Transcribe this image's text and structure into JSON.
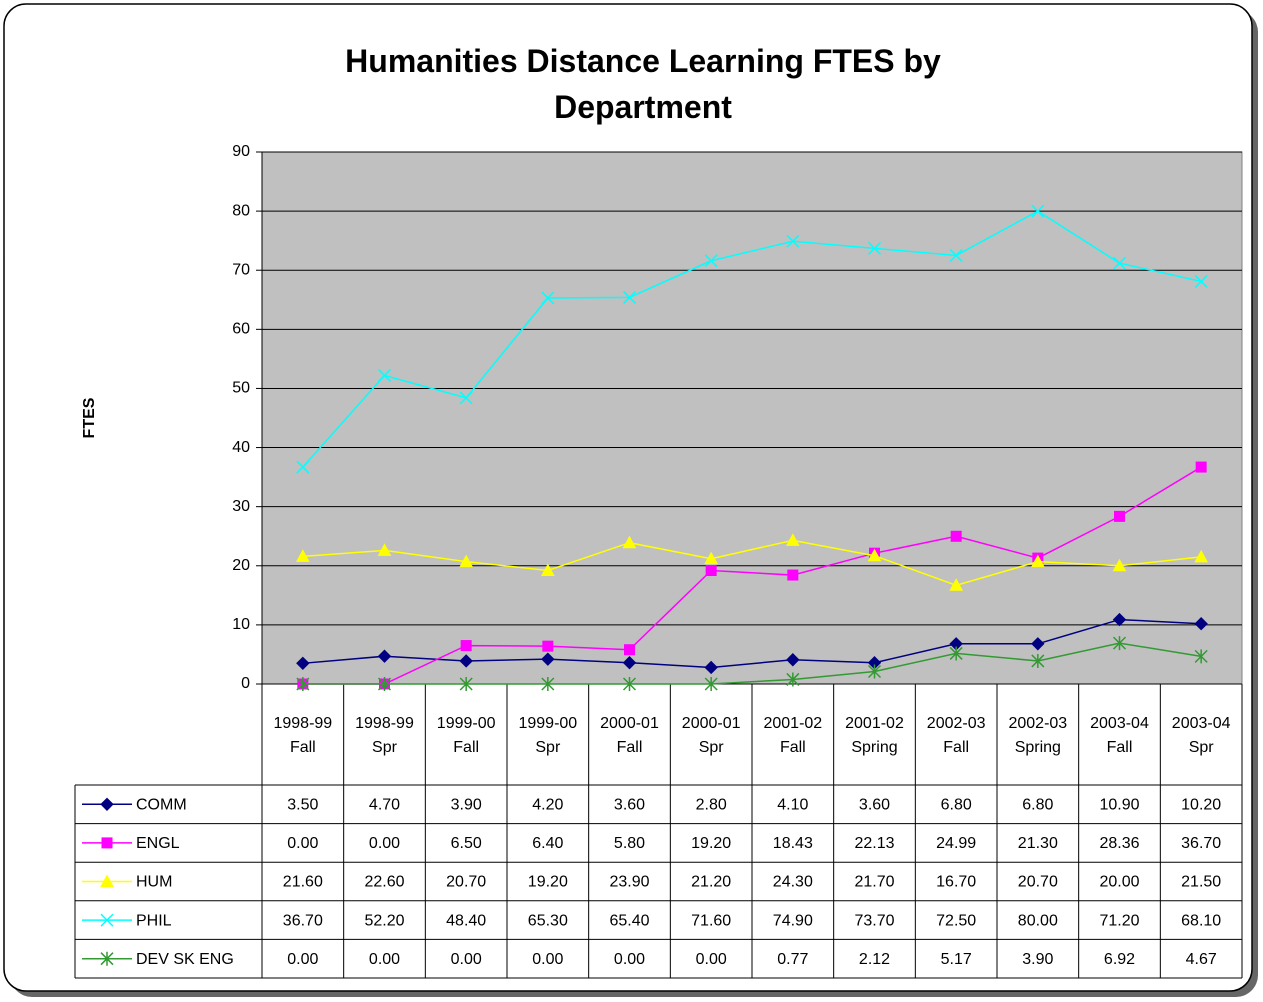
{
  "chart_data": {
    "type": "line",
    "title": "Humanities Distance Learning FTES by Department",
    "y_label": "FTES",
    "categories": [
      "1998-99 Fall",
      "1998-99 Spr",
      "1999-00 Fall",
      "1999-00 Spr",
      "2000-01 Fall",
      "2000-01 Spr",
      "2001-02 Fall",
      "2001-02 Spring",
      "2002-03 Fall",
      "2002-03 Spring",
      "2003-04 Fall",
      "2003-04 Spr"
    ],
    "ylim": [
      0,
      90
    ],
    "yticks": [
      0,
      10,
      20,
      30,
      40,
      50,
      60,
      70,
      80,
      90
    ],
    "grid": true,
    "plot_background": "#c0c0c0",
    "series": [
      {
        "name": "COMM",
        "color": "#000080",
        "marker": "diamond",
        "values": [
          3.5,
          4.7,
          3.9,
          4.2,
          3.6,
          2.8,
          4.1,
          3.6,
          6.8,
          6.8,
          10.9,
          10.2
        ],
        "value_labels": [
          "3.50",
          "4.70",
          "3.90",
          "4.20",
          "3.60",
          "2.80",
          "4.10",
          "3.60",
          "6.80",
          "6.80",
          "10.90",
          "10.20"
        ]
      },
      {
        "name": "ENGL",
        "color": "#ff00ff",
        "marker": "square",
        "values": [
          0,
          0,
          6.5,
          6.4,
          5.8,
          19.2,
          18.43,
          22.13,
          24.99,
          21.3,
          28.36,
          36.7
        ],
        "value_labels": [
          "0.00",
          "0.00",
          "6.50",
          "6.40",
          "5.80",
          "19.20",
          "18.43",
          "22.13",
          "24.99",
          "21.30",
          "28.36",
          "36.70"
        ]
      },
      {
        "name": "HUM",
        "color": "#ffff00",
        "marker": "triangle",
        "values": [
          21.6,
          22.6,
          20.7,
          19.2,
          23.9,
          21.2,
          24.3,
          21.7,
          16.7,
          20.7,
          20,
          21.5
        ],
        "value_labels": [
          "21.60",
          "22.60",
          "20.70",
          "19.20",
          "23.90",
          "21.20",
          "24.30",
          "21.70",
          "16.70",
          "20.70",
          "20.00",
          "21.50"
        ]
      },
      {
        "name": "PHIL",
        "color": "#00ffff",
        "marker": "x",
        "values": [
          36.7,
          52.2,
          48.4,
          65.3,
          65.4,
          71.6,
          74.9,
          73.7,
          72.5,
          80,
          71.2,
          68.1
        ],
        "value_labels": [
          "36.70",
          "52.20",
          "48.40",
          "65.30",
          "65.40",
          "71.60",
          "74.90",
          "73.70",
          "72.50",
          "80.00",
          "71.20",
          "68.10"
        ]
      },
      {
        "name": "DEV SK ENG",
        "color": "#339933",
        "marker": "star",
        "values": [
          0,
          0,
          0,
          0,
          0,
          0,
          0.77,
          2.12,
          5.17,
          3.9,
          6.92,
          4.67
        ],
        "value_labels": [
          "0.00",
          "0.00",
          "0.00",
          "0.00",
          "0.00",
          "0.00",
          "0.77",
          "2.12",
          "5.17",
          "3.90",
          "6.92",
          "4.67"
        ]
      }
    ]
  }
}
